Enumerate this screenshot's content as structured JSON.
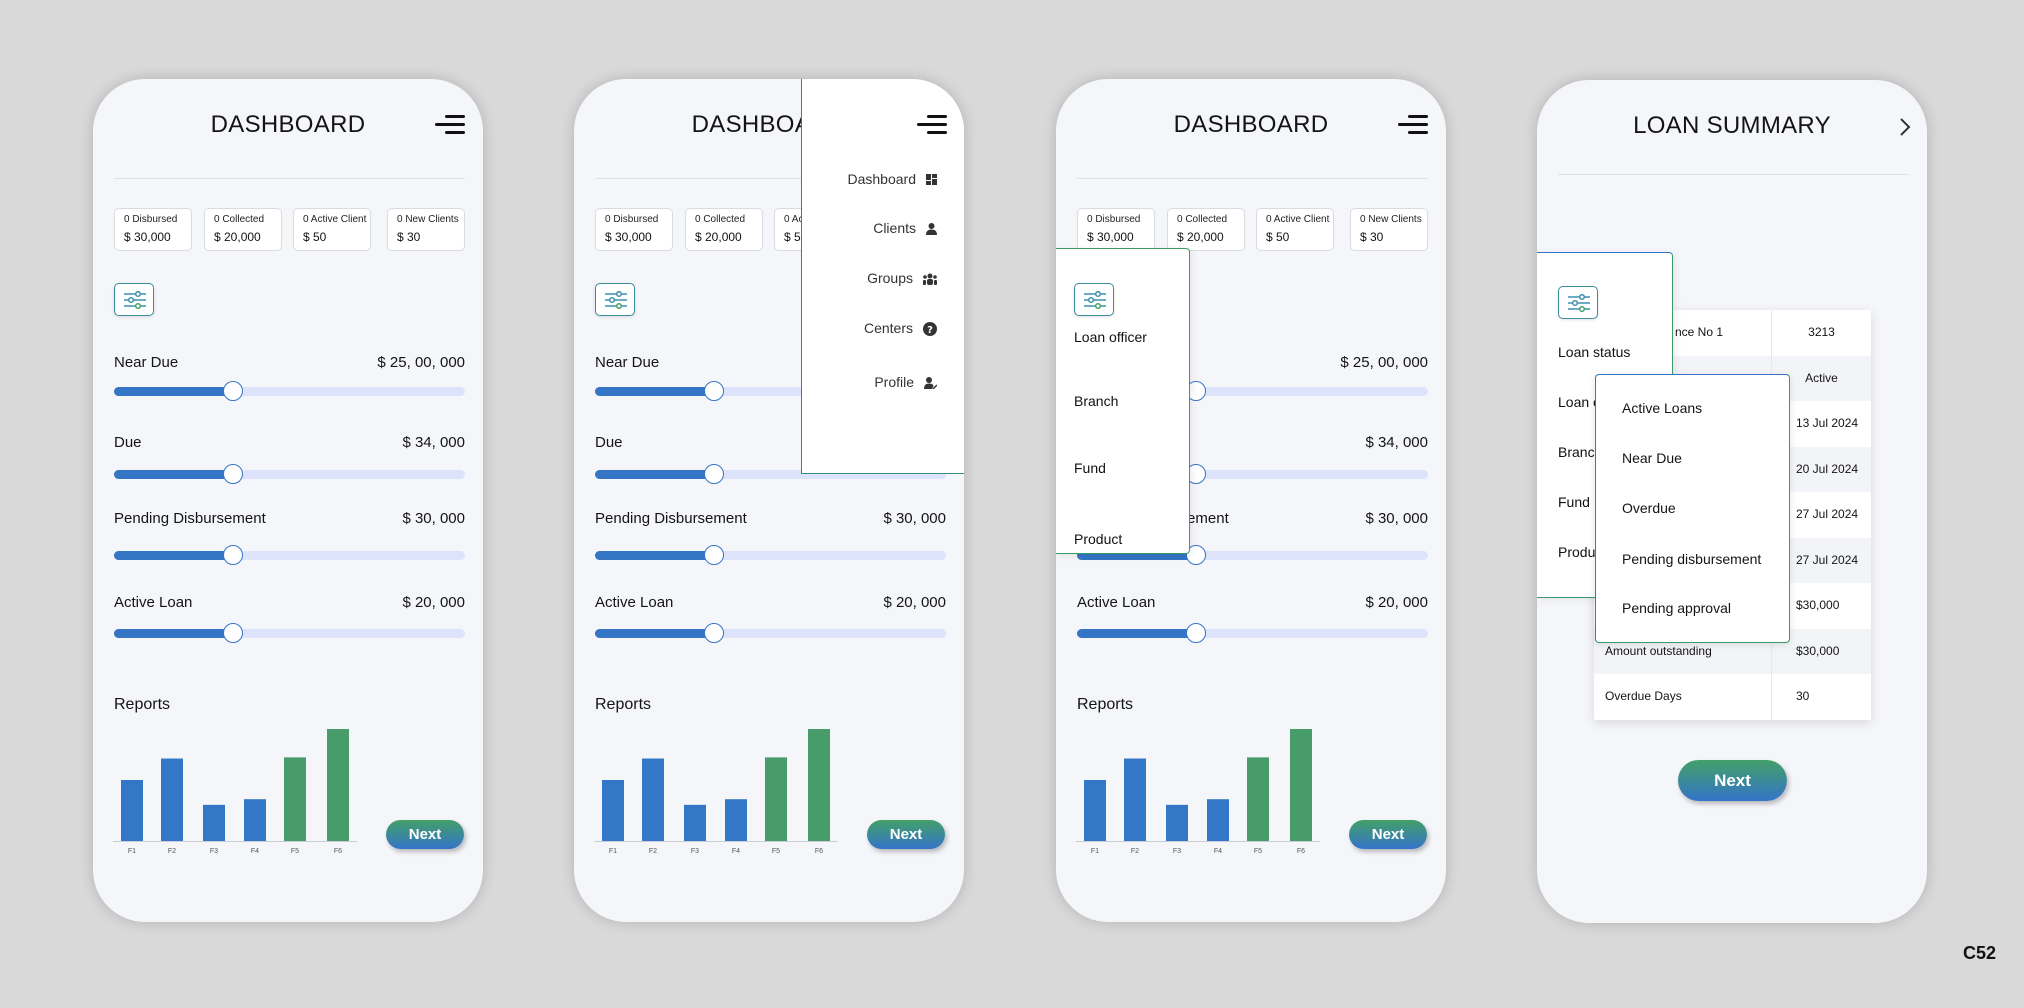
{
  "dashboard": {
    "title": "DASHBOARD",
    "stats": [
      {
        "label": "0 Disbursed",
        "value": "$ 30,000"
      },
      {
        "label": "0 Collected",
        "value": "$ 20,000"
      },
      {
        "label": "0 Active Client",
        "value": "$ 50"
      },
      {
        "label": "0 New Clients",
        "value": "$ 30"
      }
    ],
    "sliders": [
      {
        "label": "Near Due",
        "value": "$ 25, 00, 000",
        "level": 0.34
      },
      {
        "label": "Due",
        "value": "$ 34, 000",
        "level": 0.34
      },
      {
        "label": "Pending Disbursement",
        "value": "$ 30, 000",
        "level": 0.34
      },
      {
        "label": "Active Loan",
        "value": "$ 20, 000",
        "level": 0.34
      }
    ],
    "reports_label": "Reports",
    "next_label": "Next"
  },
  "chart_data": {
    "type": "bar",
    "categories": [
      "F1",
      "F2",
      "F3",
      "F4",
      "F5",
      "F6"
    ],
    "values": [
      54,
      73,
      32,
      37,
      74,
      100
    ],
    "colors": [
      "#3477c6",
      "#3477c6",
      "#3477c6",
      "#3477c6",
      "#479c6a",
      "#479c6a"
    ],
    "ylim": [
      0,
      100
    ],
    "grid": false
  },
  "nav_menu": {
    "items": [
      {
        "label": "Dashboard",
        "icon": "dashboard-icon"
      },
      {
        "label": "Clients",
        "icon": "user-icon"
      },
      {
        "label": "Groups",
        "icon": "users-icon"
      },
      {
        "label": "Centers",
        "icon": "question-circle-icon"
      },
      {
        "label": "Profile",
        "icon": "user-edit-icon"
      }
    ]
  },
  "filter_panel": {
    "items": [
      "Loan officer",
      "Branch",
      "Fund",
      "Product"
    ]
  },
  "loan_summary": {
    "title": "LOAN SUMMARY",
    "filter_items": [
      "Loan status",
      "Loan o",
      "Branc",
      "Fund",
      "Produ"
    ],
    "status_options": [
      "Active Loans",
      "Near Due",
      "Overdue",
      "Pending disbursement",
      "Pending approval"
    ],
    "rows": [
      {
        "label": "nce No 1",
        "value": "3213"
      },
      {
        "label": "",
        "value": "Active"
      },
      {
        "label": "",
        "value": "13 Jul 2024"
      },
      {
        "label": "",
        "value": "20 Jul 2024"
      },
      {
        "label": "",
        "value": "27 Jul 2024"
      },
      {
        "label": "",
        "value": "27 Jul 2024"
      },
      {
        "label": "",
        "value": "$30,000"
      },
      {
        "label": "Amount outstanding",
        "value": "$30,000"
      },
      {
        "label": "Overdue Days",
        "value": "30"
      }
    ],
    "next_label": "Next"
  },
  "footer_tag": "C52",
  "colors": {
    "accent_blue": "#3575c5",
    "accent_green": "#479c6a",
    "background": "#d9d9d9",
    "phone_bg": "#f5f6fa"
  }
}
